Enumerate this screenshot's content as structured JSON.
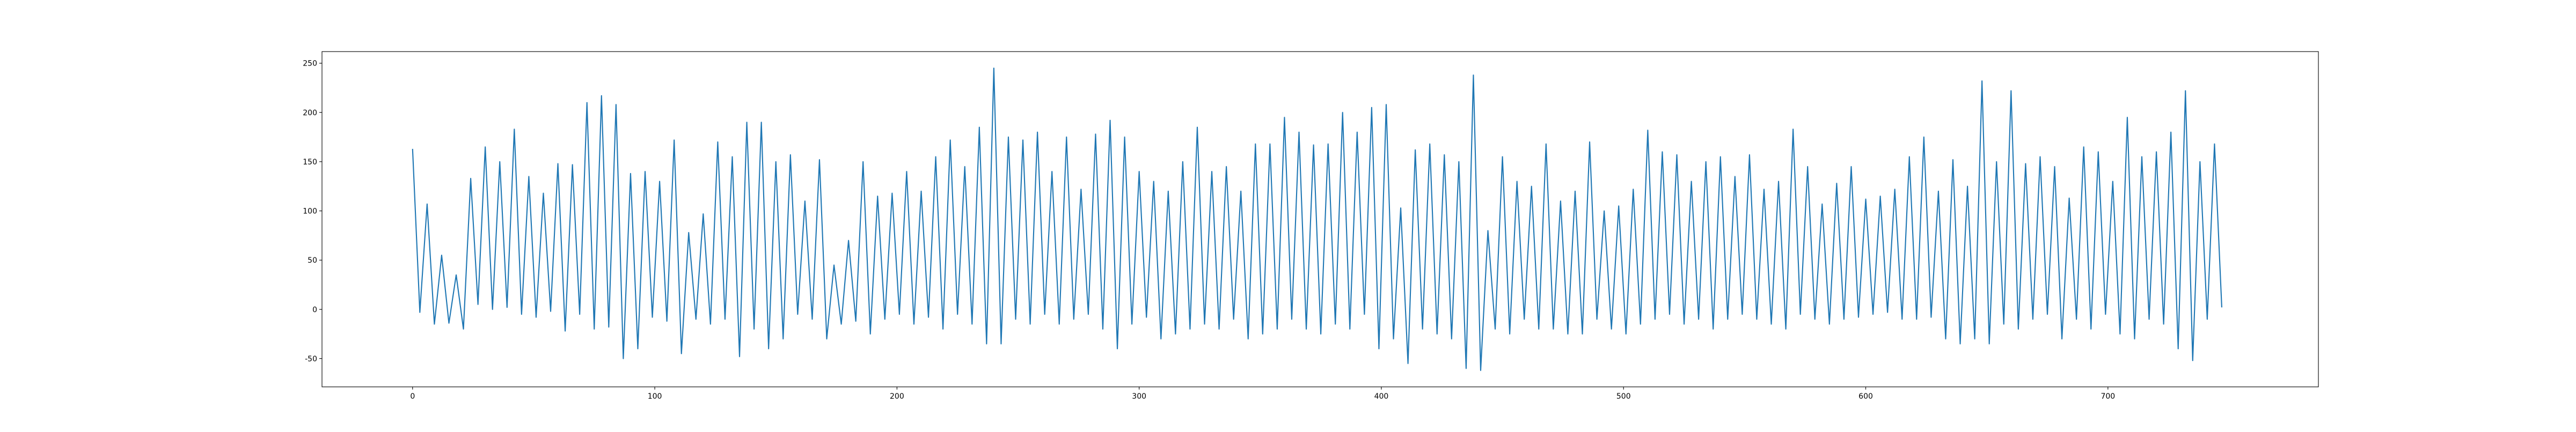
{
  "chart_data": {
    "type": "line",
    "color": "#1f77b4",
    "xlim": [
      -37.4,
      786.9
    ],
    "ylim": [
      -78.7,
      261.8
    ],
    "xticks": [
      0,
      100,
      200,
      300,
      400,
      500,
      600,
      700
    ],
    "yticks": [
      -50,
      0,
      50,
      100,
      150,
      200,
      250
    ],
    "x": [
      0,
      3,
      6,
      9,
      12,
      15,
      18,
      21,
      24,
      27,
      30,
      33,
      36,
      39,
      42,
      45,
      48,
      51,
      54,
      57,
      60,
      63,
      66,
      69,
      72,
      75,
      78,
      81,
      84,
      87,
      90,
      93,
      96,
      99,
      102,
      105,
      108,
      111,
      114,
      117,
      120,
      123,
      126,
      129,
      132,
      135,
      138,
      141,
      144,
      147,
      150,
      153,
      156,
      159,
      162,
      165,
      168,
      171,
      174,
      177,
      180,
      183,
      186,
      189,
      192,
      195,
      198,
      201,
      204,
      207,
      210,
      213,
      216,
      219,
      222,
      225,
      228,
      231,
      234,
      237,
      240,
      243,
      246,
      249,
      252,
      255,
      258,
      261,
      264,
      267,
      270,
      273,
      276,
      279,
      282,
      285,
      288,
      291,
      294,
      297,
      300,
      303,
      306,
      309,
      312,
      315,
      318,
      321,
      324,
      327,
      330,
      333,
      336,
      339,
      342,
      345,
      348,
      351,
      354,
      357,
      360,
      363,
      366,
      369,
      372,
      375,
      378,
      381,
      384,
      387,
      390,
      393,
      396,
      399,
      402,
      405,
      408,
      411,
      414,
      417,
      420,
      423,
      426,
      429,
      432,
      435,
      438,
      441,
      444,
      447,
      450,
      453,
      456,
      459,
      462,
      465,
      468,
      471,
      474,
      477,
      480,
      483,
      486,
      489,
      492,
      495,
      498,
      501,
      504,
      507,
      510,
      513,
      516,
      519,
      522,
      525,
      528,
      531,
      534,
      537,
      540,
      543,
      546,
      549,
      552,
      555,
      558,
      561,
      564,
      567,
      570,
      573,
      576,
      579,
      582,
      585,
      588,
      591,
      594,
      597,
      600,
      603,
      606,
      609,
      612,
      615,
      618,
      621,
      624,
      627,
      630,
      633,
      636,
      639,
      642,
      645,
      648,
      651,
      654,
      657,
      660,
      663,
      666,
      669,
      672,
      675,
      678,
      681,
      684,
      687,
      690,
      693,
      696,
      699,
      702,
      705,
      708,
      711,
      714,
      717,
      720,
      723,
      726,
      729,
      732,
      735,
      738,
      741,
      744,
      747
    ],
    "values": [
      163,
      -3,
      107,
      -15,
      55,
      -14,
      35,
      -20,
      133,
      5,
      165,
      0,
      150,
      2,
      183,
      -5,
      135,
      -8,
      118,
      -2,
      148,
      -22,
      147,
      -5,
      210,
      -20,
      217,
      -18,
      208,
      -50,
      138,
      -40,
      140,
      -8,
      130,
      -12,
      172,
      -45,
      78,
      -10,
      97,
      -15,
      170,
      -10,
      155,
      -48,
      190,
      -20,
      190,
      -40,
      150,
      -30,
      157,
      -5,
      110,
      -10,
      152,
      -30,
      45,
      -15,
      70,
      -12,
      150,
      -25,
      115,
      -10,
      118,
      -5,
      140,
      -15,
      120,
      -8,
      155,
      -20,
      172,
      -5,
      145,
      -15,
      185,
      -35,
      245,
      -35,
      175,
      -10,
      172,
      -15,
      180,
      -5,
      140,
      -15,
      175,
      -10,
      122,
      -5,
      178,
      -20,
      192,
      -40,
      175,
      -15,
      140,
      -8,
      130,
      -30,
      120,
      -25,
      150,
      -20,
      185,
      -15,
      140,
      -20,
      145,
      -10,
      120,
      -30,
      168,
      -25,
      168,
      -20,
      195,
      -10,
      180,
      -20,
      167,
      -25,
      168,
      -15,
      200,
      -20,
      180,
      -5,
      205,
      -40,
      208,
      -30,
      103,
      -55,
      162,
      -20,
      168,
      -25,
      157,
      -30,
      150,
      -60,
      238,
      -62,
      80,
      -20,
      155,
      -25,
      130,
      -10,
      125,
      -20,
      168,
      -20,
      110,
      -25,
      120,
      -25,
      170,
      -10,
      100,
      -20,
      105,
      -25,
      122,
      -15,
      182,
      -10,
      160,
      -5,
      157,
      -15,
      130,
      -10,
      150,
      -20,
      155,
      -10,
      135,
      -5,
      157,
      -10,
      122,
      -15,
      130,
      -20,
      183,
      -5,
      145,
      -10,
      107,
      -15,
      128,
      -10,
      145,
      -8,
      112,
      -5,
      115,
      -3,
      122,
      -10,
      155,
      -10,
      175,
      -8,
      120,
      -30,
      152,
      -35,
      125,
      -30,
      232,
      -35,
      150,
      -15,
      222,
      -20,
      148,
      -10,
      155,
      -5,
      145,
      -30,
      113,
      -10,
      165,
      -20,
      160,
      -5,
      130,
      -25,
      195,
      -30,
      155,
      -10,
      160,
      -15,
      180,
      -40,
      222,
      -52,
      150,
      -10,
      168,
      2
    ]
  }
}
